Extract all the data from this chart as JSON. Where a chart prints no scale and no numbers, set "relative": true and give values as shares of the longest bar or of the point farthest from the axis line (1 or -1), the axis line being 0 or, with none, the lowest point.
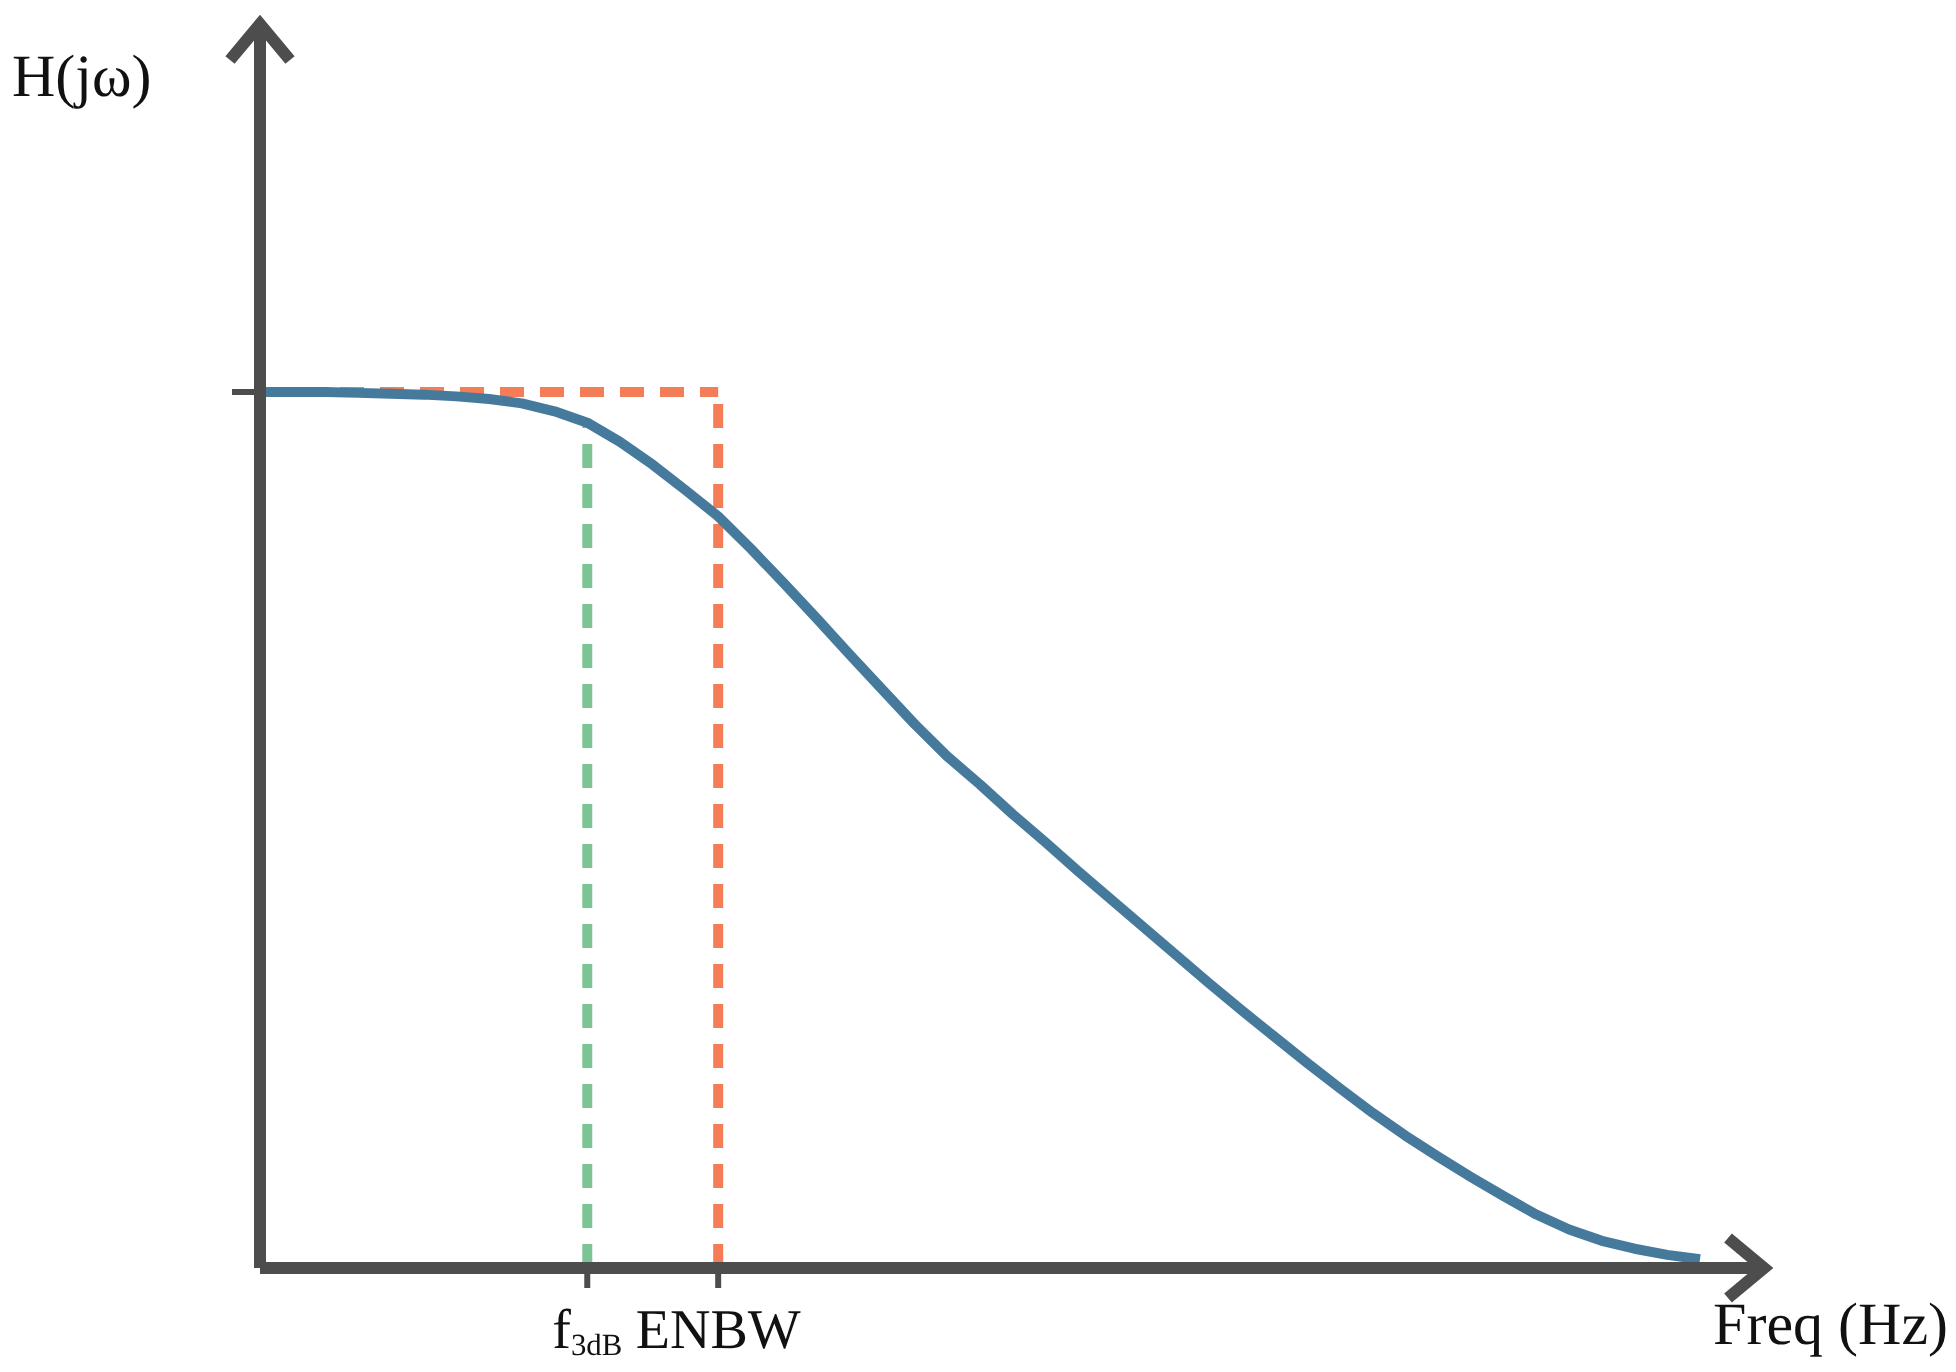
{
  "chart_data": {
    "type": "line",
    "relative": true,
    "xlabel": "Freq (Hz)",
    "ylabel": "H(jω)",
    "categories": [
      null,
      null,
      null,
      null,
      null,
      null,
      null,
      null,
      null,
      null,
      "f$_{3dB}$",
      null,
      null,
      null,
      "ENBW",
      null,
      null,
      null,
      null,
      null,
      null,
      null,
      null,
      null,
      null,
      null,
      null,
      null,
      null,
      null,
      null,
      null,
      null,
      null,
      null,
      null,
      null,
      null,
      null,
      null,
      null,
      null,
      null,
      null,
      null
    ],
    "series": [
      {
        "color": "#467a9c",
        "values": [
          1.0,
          1.0,
          1.0,
          0.999,
          0.998,
          0.997,
          0.995,
          0.992,
          0.987,
          0.978,
          0.965,
          0.943,
          0.917,
          0.888,
          0.858,
          0.821,
          0.782,
          0.742,
          0.701,
          0.661,
          0.621,
          0.584,
          0.552,
          0.518,
          0.486,
          0.453,
          0.421,
          0.389,
          0.357,
          0.325,
          0.294,
          0.264,
          0.234,
          0.205,
          0.177,
          0.151,
          0.127,
          0.104,
          0.082,
          0.061,
          0.044,
          0.031,
          0.022,
          0.015,
          0.01
        ]
      }
    ],
    "ref_lines": [
      {
        "axis": "x",
        "value": "f$_{3dB}$",
        "color": "#7dc495",
        "line_style": "dashed"
      },
      {
        "axis": "x",
        "value": "ENBW",
        "color": "#f47c56",
        "line_style": "dashed"
      },
      {
        "axis": "y",
        "value": 1,
        "color": "#f47c56",
        "line_style": "dashed"
      }
    ],
    "marker": "none",
    "line_style": "solid"
  }
}
